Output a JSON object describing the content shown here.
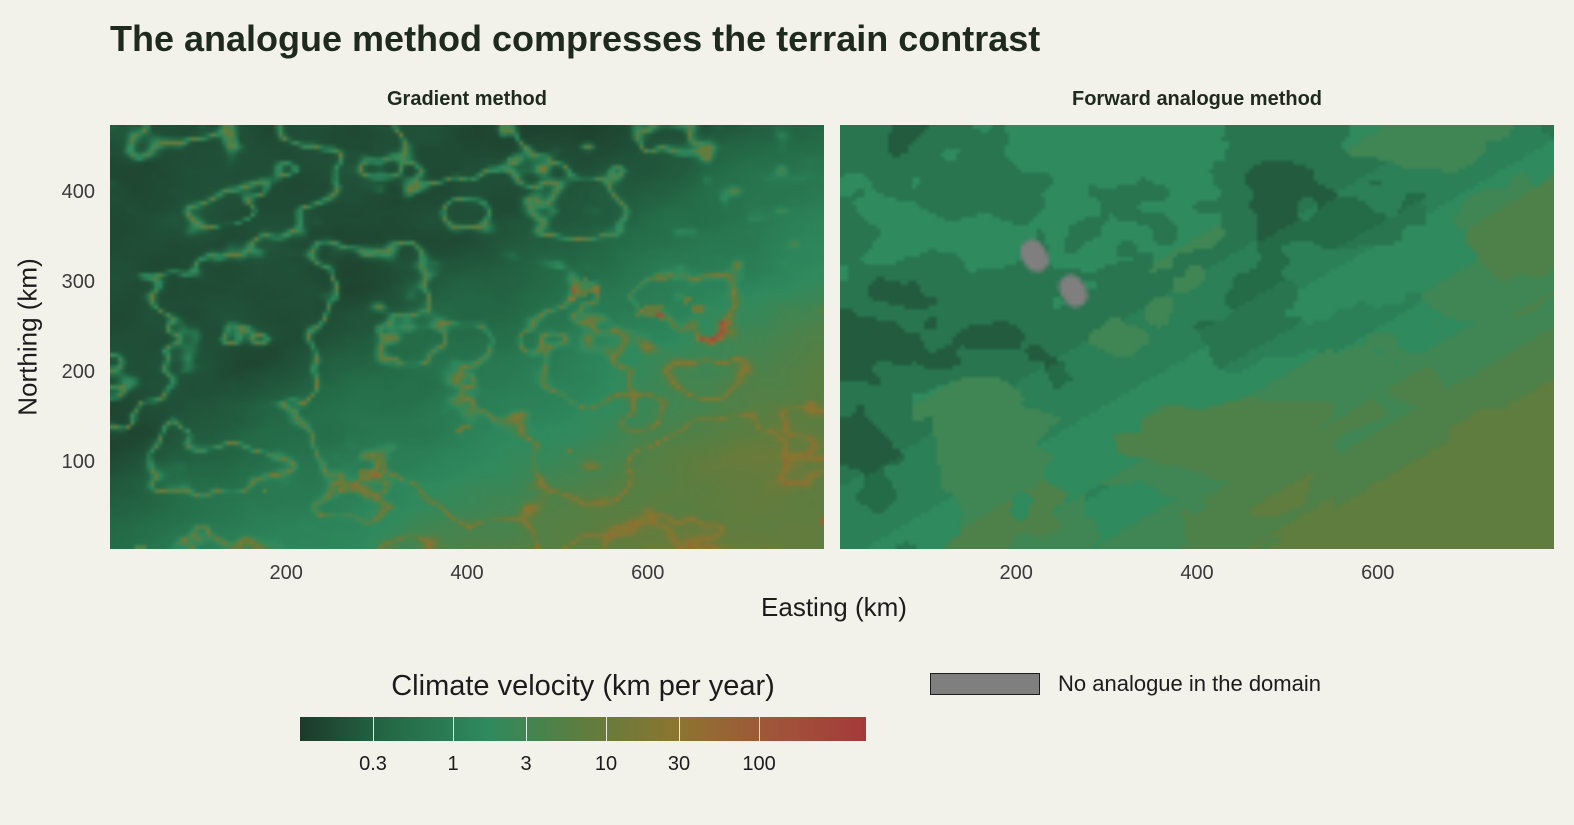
{
  "title": "The analogue method compresses the terrain contrast",
  "chart_data": {
    "type": "heatmap",
    "title": "The analogue method compresses the terrain contrast",
    "xlabel": "Easting (km)",
    "ylabel": "Northing (km)",
    "xlim": [
      5,
      795
    ],
    "ylim": [
      5,
      475
    ],
    "x_ticks": [
      "200",
      "400",
      "600"
    ],
    "y_ticks": [
      "100",
      "200",
      "300",
      "400"
    ],
    "panels": [
      {
        "name": "Gradient method",
        "style": "gradient"
      },
      {
        "name": "Forward analogue method",
        "style": "analogue",
        "no_analogue_patches": [
          {
            "x": 220,
            "y": 330
          },
          {
            "x": 263,
            "y": 291
          }
        ]
      }
    ],
    "legend": {
      "title": "Climate velocity (km per year)",
      "scale": "log",
      "range": [
        0.1,
        500
      ],
      "breaks": [
        0.3,
        1,
        3,
        10,
        30,
        100
      ],
      "labels": [
        "0.3",
        "1",
        "3",
        "10",
        "30",
        "100"
      ],
      "colors": [
        "#1d3a2a",
        "#246b48",
        "#2f8a5e",
        "#5e7d3f",
        "#8c7530",
        "#a0553a",
        "#a43a3a"
      ],
      "na_label": "No analogue in the domain",
      "na_color": "#7f7f7f"
    }
  }
}
